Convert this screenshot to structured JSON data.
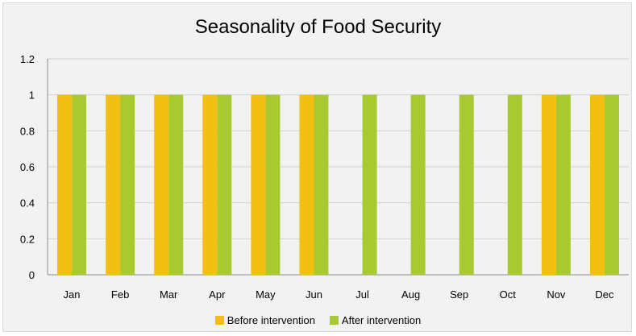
{
  "chart_data": {
    "type": "bar",
    "title": "Seasonality of Food Security",
    "xlabel": "",
    "ylabel": "",
    "categories": [
      "Jan",
      "Feb",
      "Mar",
      "Apr",
      "May",
      "Jun",
      "Jul",
      "Aug",
      "Sep",
      "Oct",
      "Nov",
      "Dec"
    ],
    "series": [
      {
        "name": "Before intervention",
        "color": "#f2c011",
        "values": [
          1,
          1,
          1,
          1,
          1,
          1,
          0,
          0,
          0,
          0,
          1,
          1
        ]
      },
      {
        "name": "After intervention",
        "color": "#a9c931",
        "values": [
          1,
          1,
          1,
          1,
          1,
          1,
          1,
          1,
          1,
          1,
          1,
          1
        ]
      }
    ],
    "ylim": [
      0,
      1.2
    ],
    "yticks": [
      "0",
      "0.2",
      "0.4",
      "0.6",
      "0.8",
      "1",
      "1.2"
    ],
    "grid": true,
    "legend_position": "bottom"
  }
}
